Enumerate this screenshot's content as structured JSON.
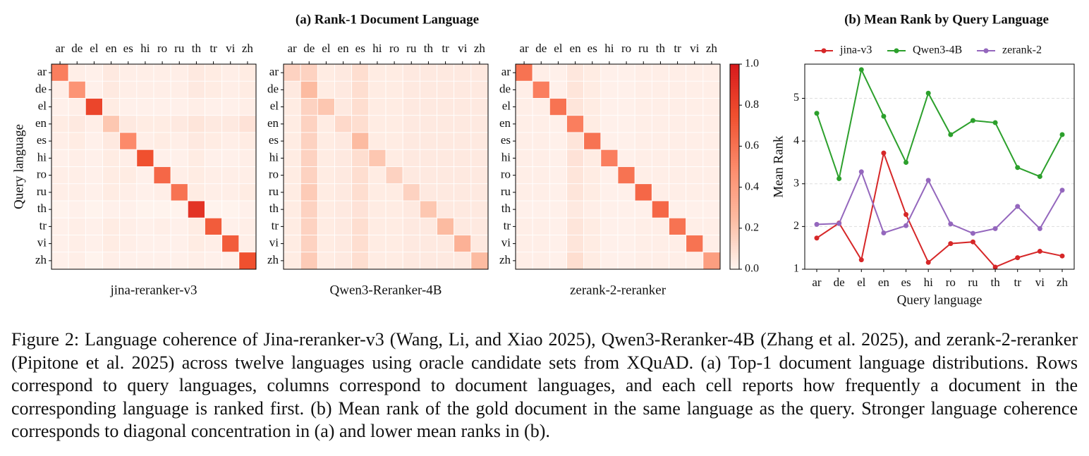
{
  "panel_a_title": "(a) Rank-1 Document Language",
  "caption": "Figure 2: Language coherence of Jina-reranker-v3 (Wang, Li, and Xiao 2025), Qwen3-Reranker-4B (Zhang et al. 2025), and zerank-2-reranker (Pipitone et al. 2025) across twelve languages using oracle candidate sets from XQuAD. (a) Top-1 document language distributions. Rows correspond to query languages, columns correspond to document languages, and each cell reports how frequently a document in the corresponding language is ranked first. (b) Mean rank of the gold document in the same language as the query. Stronger language coherence corresponds to diagonal concentration in (a) and lower mean ranks in (b).",
  "chart_data": [
    {
      "type": "heatmap",
      "title": "jina-reranker-v3",
      "ylabel": "Query language",
      "x_categories": [
        "ar",
        "de",
        "el",
        "en",
        "es",
        "hi",
        "ro",
        "ru",
        "th",
        "tr",
        "vi",
        "zh"
      ],
      "y_categories": [
        "ar",
        "de",
        "el",
        "en",
        "es",
        "hi",
        "ro",
        "ru",
        "th",
        "tr",
        "vi",
        "zh"
      ],
      "colorscale": [
        "#fff5f0",
        "#fcbba1",
        "#fc8a6a",
        "#f0502f",
        "#d7191c"
      ],
      "clim": [
        0,
        1
      ],
      "values": [
        [
          0.55,
          0.03,
          0.02,
          0.05,
          0.03,
          0.03,
          0.03,
          0.03,
          0.05,
          0.04,
          0.03,
          0.04
        ],
        [
          0.03,
          0.45,
          0.02,
          0.05,
          0.03,
          0.03,
          0.03,
          0.03,
          0.05,
          0.04,
          0.03,
          0.04
        ],
        [
          0.02,
          0.03,
          0.8,
          0.04,
          0.02,
          0.02,
          0.02,
          0.02,
          0.03,
          0.02,
          0.02,
          0.03
        ],
        [
          0.04,
          0.05,
          0.03,
          0.2,
          0.05,
          0.04,
          0.04,
          0.05,
          0.07,
          0.05,
          0.05,
          0.08
        ],
        [
          0.03,
          0.04,
          0.02,
          0.05,
          0.5,
          0.03,
          0.04,
          0.03,
          0.05,
          0.04,
          0.03,
          0.04
        ],
        [
          0.02,
          0.03,
          0.02,
          0.04,
          0.03,
          0.75,
          0.02,
          0.02,
          0.04,
          0.02,
          0.02,
          0.03
        ],
        [
          0.03,
          0.03,
          0.02,
          0.04,
          0.04,
          0.02,
          0.65,
          0.03,
          0.04,
          0.03,
          0.03,
          0.03
        ],
        [
          0.03,
          0.03,
          0.02,
          0.04,
          0.03,
          0.02,
          0.03,
          0.6,
          0.04,
          0.03,
          0.03,
          0.04
        ],
        [
          0.01,
          0.02,
          0.01,
          0.02,
          0.02,
          0.01,
          0.01,
          0.01,
          0.88,
          0.01,
          0.01,
          0.02
        ],
        [
          0.02,
          0.03,
          0.02,
          0.04,
          0.03,
          0.02,
          0.03,
          0.02,
          0.04,
          0.7,
          0.02,
          0.03
        ],
        [
          0.02,
          0.03,
          0.02,
          0.04,
          0.03,
          0.02,
          0.02,
          0.02,
          0.04,
          0.03,
          0.7,
          0.03
        ],
        [
          0.02,
          0.03,
          0.01,
          0.03,
          0.02,
          0.02,
          0.02,
          0.02,
          0.03,
          0.02,
          0.02,
          0.75
        ]
      ]
    },
    {
      "type": "heatmap",
      "title": "Qwen3-Reranker-4B",
      "x_categories": [
        "ar",
        "de",
        "el",
        "en",
        "es",
        "hi",
        "ro",
        "ru",
        "th",
        "tr",
        "vi",
        "zh"
      ],
      "y_categories": [
        "ar",
        "de",
        "el",
        "en",
        "es",
        "hi",
        "ro",
        "ru",
        "th",
        "tr",
        "vi",
        "zh"
      ],
      "colorscale": [
        "#fff5f0",
        "#fcbba1",
        "#fc8a6a",
        "#f0502f",
        "#d7191c"
      ],
      "clim": [
        0,
        1
      ],
      "values": [
        [
          0.15,
          0.15,
          0.04,
          0.05,
          0.1,
          0.04,
          0.04,
          0.05,
          0.05,
          0.05,
          0.05,
          0.05
        ],
        [
          0.05,
          0.25,
          0.04,
          0.05,
          0.1,
          0.04,
          0.04,
          0.05,
          0.05,
          0.05,
          0.05,
          0.05
        ],
        [
          0.04,
          0.15,
          0.2,
          0.05,
          0.1,
          0.04,
          0.04,
          0.05,
          0.05,
          0.05,
          0.05,
          0.05
        ],
        [
          0.04,
          0.15,
          0.04,
          0.12,
          0.1,
          0.04,
          0.04,
          0.05,
          0.05,
          0.05,
          0.05,
          0.05
        ],
        [
          0.04,
          0.15,
          0.04,
          0.05,
          0.25,
          0.04,
          0.04,
          0.05,
          0.05,
          0.05,
          0.05,
          0.05
        ],
        [
          0.04,
          0.15,
          0.04,
          0.05,
          0.1,
          0.2,
          0.04,
          0.05,
          0.05,
          0.05,
          0.05,
          0.05
        ],
        [
          0.04,
          0.15,
          0.04,
          0.05,
          0.1,
          0.04,
          0.15,
          0.05,
          0.05,
          0.05,
          0.05,
          0.05
        ],
        [
          0.04,
          0.18,
          0.04,
          0.05,
          0.1,
          0.04,
          0.04,
          0.15,
          0.05,
          0.05,
          0.05,
          0.05
        ],
        [
          0.04,
          0.15,
          0.04,
          0.05,
          0.08,
          0.04,
          0.04,
          0.05,
          0.2,
          0.05,
          0.05,
          0.05
        ],
        [
          0.04,
          0.15,
          0.04,
          0.05,
          0.1,
          0.04,
          0.04,
          0.05,
          0.05,
          0.25,
          0.05,
          0.05
        ],
        [
          0.04,
          0.15,
          0.04,
          0.05,
          0.1,
          0.04,
          0.04,
          0.05,
          0.05,
          0.05,
          0.3,
          0.05
        ],
        [
          0.04,
          0.18,
          0.04,
          0.05,
          0.1,
          0.04,
          0.04,
          0.05,
          0.05,
          0.05,
          0.05,
          0.25
        ]
      ]
    },
    {
      "type": "heatmap",
      "title": "zerank-2-reranker",
      "x_categories": [
        "ar",
        "de",
        "el",
        "en",
        "es",
        "hi",
        "ro",
        "ru",
        "th",
        "tr",
        "vi",
        "zh"
      ],
      "y_categories": [
        "ar",
        "de",
        "el",
        "en",
        "es",
        "hi",
        "ro",
        "ru",
        "th",
        "tr",
        "vi",
        "zh"
      ],
      "colorscale": [
        "#fff5f0",
        "#fcbba1",
        "#fc8a6a",
        "#f0502f",
        "#d7191c"
      ],
      "clim": [
        0,
        1
      ],
      "cticks": [
        {
          "value": 0,
          "label": "0.0"
        },
        0.2,
        0.4,
        0.6,
        0.8,
        {
          "value": 1,
          "label": "1.0"
        }
      ],
      "values": [
        [
          0.6,
          0.03,
          0.02,
          0.06,
          0.04,
          0.02,
          0.02,
          0.03,
          0.03,
          0.03,
          0.03,
          0.03
        ],
        [
          0.03,
          0.55,
          0.02,
          0.07,
          0.04,
          0.02,
          0.02,
          0.03,
          0.03,
          0.03,
          0.03,
          0.03
        ],
        [
          0.03,
          0.03,
          0.6,
          0.07,
          0.04,
          0.02,
          0.02,
          0.03,
          0.03,
          0.03,
          0.03,
          0.03
        ],
        [
          0.03,
          0.03,
          0.02,
          0.55,
          0.04,
          0.02,
          0.02,
          0.03,
          0.03,
          0.03,
          0.03,
          0.03
        ],
        [
          0.03,
          0.03,
          0.02,
          0.07,
          0.6,
          0.02,
          0.02,
          0.03,
          0.03,
          0.03,
          0.03,
          0.03
        ],
        [
          0.03,
          0.03,
          0.02,
          0.08,
          0.04,
          0.55,
          0.02,
          0.03,
          0.03,
          0.03,
          0.03,
          0.03
        ],
        [
          0.03,
          0.03,
          0.02,
          0.07,
          0.04,
          0.02,
          0.6,
          0.03,
          0.03,
          0.03,
          0.03,
          0.03
        ],
        [
          0.03,
          0.03,
          0.02,
          0.07,
          0.04,
          0.02,
          0.02,
          0.65,
          0.03,
          0.03,
          0.03,
          0.03
        ],
        [
          0.02,
          0.02,
          0.02,
          0.05,
          0.03,
          0.02,
          0.02,
          0.02,
          0.65,
          0.02,
          0.02,
          0.02
        ],
        [
          0.03,
          0.03,
          0.02,
          0.07,
          0.04,
          0.02,
          0.02,
          0.03,
          0.03,
          0.6,
          0.03,
          0.03
        ],
        [
          0.03,
          0.03,
          0.02,
          0.07,
          0.04,
          0.02,
          0.02,
          0.03,
          0.03,
          0.03,
          0.6,
          0.03
        ],
        [
          0.03,
          0.03,
          0.02,
          0.1,
          0.04,
          0.02,
          0.02,
          0.03,
          0.03,
          0.03,
          0.03,
          0.4
        ]
      ]
    },
    {
      "type": "line",
      "title": "(b) Mean Rank by Query Language",
      "xlabel": "Query language",
      "ylabel": "Mean Rank",
      "categories": [
        "ar",
        "de",
        "el",
        "en",
        "es",
        "hi",
        "ro",
        "ru",
        "th",
        "tr",
        "vi",
        "zh"
      ],
      "ylim": [
        1,
        5.8
      ],
      "yticks": [
        1,
        2,
        3,
        4,
        5
      ],
      "grid": true,
      "legend": "top",
      "series": [
        {
          "name": "jina-v3",
          "color": "#d62728",
          "values": [
            1.73,
            2.08,
            1.22,
            3.72,
            2.28,
            1.16,
            1.6,
            1.64,
            1.05,
            1.27,
            1.42,
            1.31
          ]
        },
        {
          "name": "Qwen3-4B",
          "color": "#2ca02c",
          "values": [
            4.65,
            3.12,
            5.67,
            4.58,
            3.5,
            5.12,
            4.15,
            4.48,
            4.43,
            3.38,
            3.17,
            4.15
          ]
        },
        {
          "name": "zerank-2",
          "color": "#9467bd",
          "values": [
            2.05,
            2.07,
            3.28,
            1.85,
            2.02,
            3.08,
            2.06,
            1.84,
            1.95,
            2.47,
            1.95,
            2.85
          ]
        }
      ]
    }
  ]
}
